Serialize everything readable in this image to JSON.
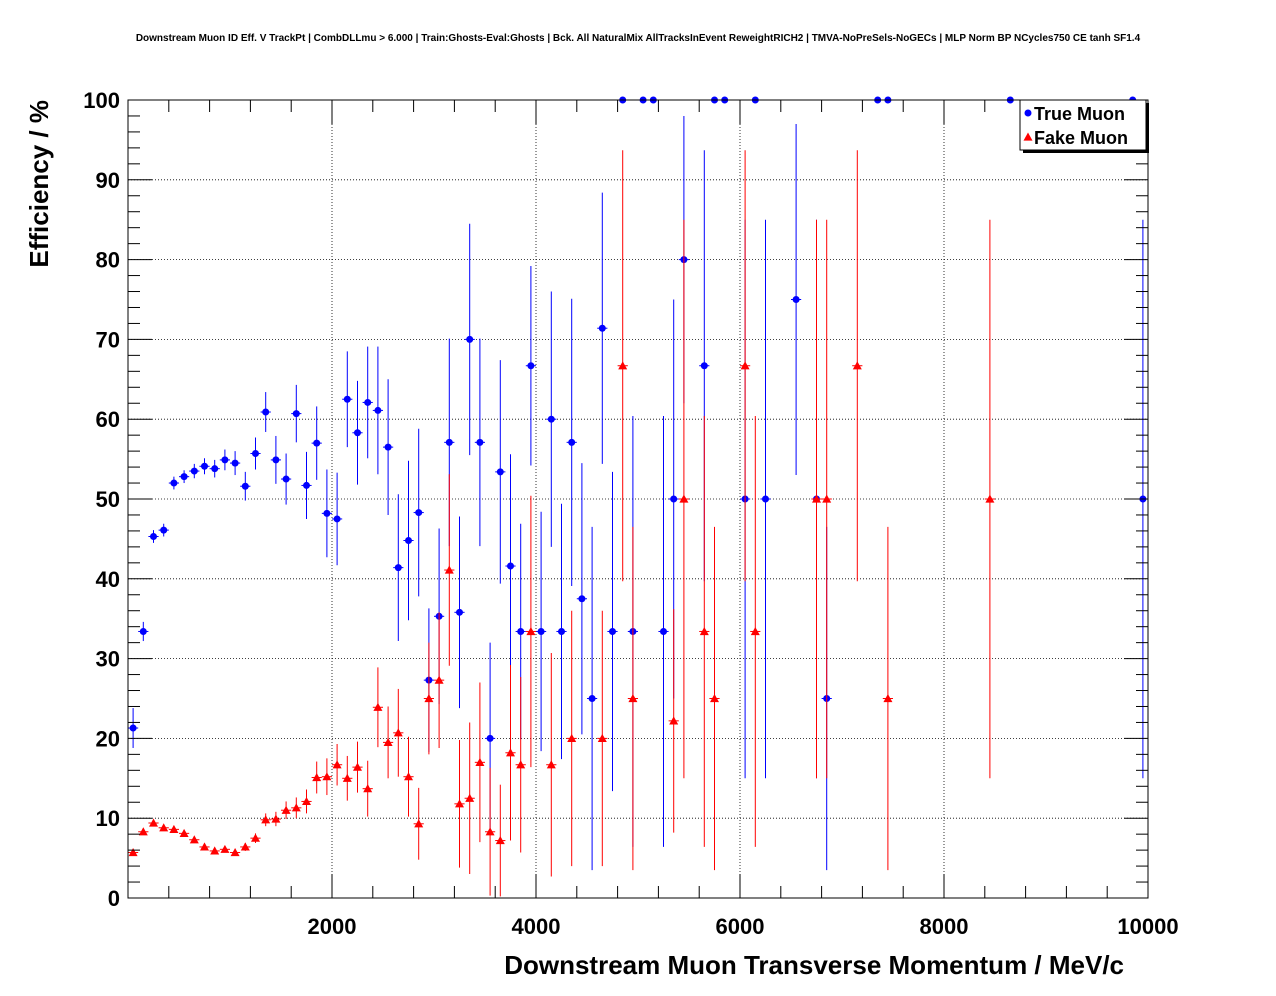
{
  "chart_data": {
    "type": "scatter",
    "title": "Downstream Muon ID Eff. V TrackPt | CombDLLmu > 6.000 | Train:Ghosts-Eval:Ghosts | Bck. All NaturalMix AllTracksInEvent ReweightRICH2 | TMVA-NoPreSels-NoGECs | MLP Norm BP NCycles750 CE tanh SF1.4",
    "xlabel": "Downstream Muon Transverse Momentum / MeV/c",
    "ylabel": "Efficiency / %",
    "xlim": [
      0,
      10000
    ],
    "ylim": [
      0,
      100
    ],
    "x_ticks": [
      "2000",
      "4000",
      "6000",
      "8000",
      "10000"
    ],
    "y_ticks": [
      "0",
      "10",
      "20",
      "30",
      "40",
      "50",
      "60",
      "70",
      "80",
      "90",
      "100"
    ],
    "grid": true,
    "legend_position": "top-right",
    "series": [
      {
        "name": "True Muon",
        "color": "#0000ff",
        "marker": "circle",
        "points": [
          {
            "x": 50,
            "y": 21.3,
            "lo": 2.5,
            "hi": 2.5
          },
          {
            "x": 150,
            "y": 33.4,
            "lo": 1.2,
            "hi": 1.2
          },
          {
            "x": 250,
            "y": 45.3,
            "lo": 0.8,
            "hi": 0.8
          },
          {
            "x": 350,
            "y": 46.1,
            "lo": 0.8,
            "hi": 0.8
          },
          {
            "x": 450,
            "y": 52.0,
            "lo": 0.8,
            "hi": 0.8
          },
          {
            "x": 550,
            "y": 52.8,
            "lo": 0.8,
            "hi": 0.8
          },
          {
            "x": 650,
            "y": 53.5,
            "lo": 0.9,
            "hi": 0.9
          },
          {
            "x": 750,
            "y": 54.1,
            "lo": 1.0,
            "hi": 1.0
          },
          {
            "x": 850,
            "y": 53.8,
            "lo": 1.1,
            "hi": 1.1
          },
          {
            "x": 950,
            "y": 54.9,
            "lo": 1.3,
            "hi": 1.3
          },
          {
            "x": 1050,
            "y": 54.5,
            "lo": 1.5,
            "hi": 1.5
          },
          {
            "x": 1150,
            "y": 51.6,
            "lo": 1.8,
            "hi": 1.8
          },
          {
            "x": 1250,
            "y": 55.7,
            "lo": 2.0,
            "hi": 2.0
          },
          {
            "x": 1350,
            "y": 60.9,
            "lo": 2.5,
            "hi": 2.5
          },
          {
            "x": 1450,
            "y": 54.9,
            "lo": 3.0,
            "hi": 3.0
          },
          {
            "x": 1550,
            "y": 52.5,
            "lo": 3.2,
            "hi": 3.2
          },
          {
            "x": 1650,
            "y": 60.7,
            "lo": 3.6,
            "hi": 3.6
          },
          {
            "x": 1750,
            "y": 51.7,
            "lo": 4.2,
            "hi": 4.2
          },
          {
            "x": 1850,
            "y": 57.0,
            "lo": 4.6,
            "hi": 4.6
          },
          {
            "x": 1950,
            "y": 48.2,
            "lo": 5.5,
            "hi": 5.5
          },
          {
            "x": 2050,
            "y": 47.5,
            "lo": 5.8,
            "hi": 5.8
          },
          {
            "x": 2150,
            "y": 62.5,
            "lo": 6.0,
            "hi": 6.0
          },
          {
            "x": 2250,
            "y": 58.3,
            "lo": 6.5,
            "hi": 6.5
          },
          {
            "x": 2350,
            "y": 62.1,
            "lo": 7.0,
            "hi": 7.0
          },
          {
            "x": 2450,
            "y": 61.1,
            "lo": 8.0,
            "hi": 8.0
          },
          {
            "x": 2550,
            "y": 56.5,
            "lo": 8.5,
            "hi": 8.5
          },
          {
            "x": 2650,
            "y": 41.4,
            "lo": 9.2,
            "hi": 9.2
          },
          {
            "x": 2750,
            "y": 44.8,
            "lo": 10.0,
            "hi": 10.0
          },
          {
            "x": 2850,
            "y": 48.3,
            "lo": 10.5,
            "hi": 10.5
          },
          {
            "x": 2950,
            "y": 27.3,
            "lo": 9.0,
            "hi": 9.0
          },
          {
            "x": 3050,
            "y": 35.3,
            "lo": 11.0,
            "hi": 11.0
          },
          {
            "x": 3150,
            "y": 57.1,
            "lo": 13.0,
            "hi": 13.0
          },
          {
            "x": 3250,
            "y": 35.8,
            "lo": 12.0,
            "hi": 12.0
          },
          {
            "x": 3350,
            "y": 70.0,
            "lo": 14.5,
            "hi": 14.5
          },
          {
            "x": 3450,
            "y": 57.1,
            "lo": 13.0,
            "hi": 13.0
          },
          {
            "x": 3550,
            "y": 20.0,
            "lo": 12.0,
            "hi": 12.0
          },
          {
            "x": 3650,
            "y": 53.4,
            "lo": 14.0,
            "hi": 14.0
          },
          {
            "x": 3750,
            "y": 41.6,
            "lo": 14.0,
            "hi": 14.0
          },
          {
            "x": 3850,
            "y": 33.4,
            "lo": 13.5,
            "hi": 13.5
          },
          {
            "x": 3950,
            "y": 66.7,
            "lo": 12.5,
            "hi": 12.5
          },
          {
            "x": 4050,
            "y": 33.4,
            "lo": 15.0,
            "hi": 15.0
          },
          {
            "x": 4150,
            "y": 60.0,
            "lo": 16.0,
            "hi": 16.0
          },
          {
            "x": 4250,
            "y": 33.4,
            "lo": 16.0,
            "hi": 16.0
          },
          {
            "x": 4350,
            "y": 57.1,
            "lo": 18.0,
            "hi": 18.0
          },
          {
            "x": 4450,
            "y": 37.5,
            "lo": 17.0,
            "hi": 17.0
          },
          {
            "x": 4550,
            "y": 25.0,
            "lo": 21.5,
            "hi": 21.5
          },
          {
            "x": 4650,
            "y": 71.4,
            "lo": 17.0,
            "hi": 17.0
          },
          {
            "x": 4750,
            "y": 33.4,
            "lo": 20.0,
            "hi": 20.0
          },
          {
            "x": 4850,
            "y": 100,
            "lo": 0,
            "hi": 0
          },
          {
            "x": 4950,
            "y": 33.4,
            "lo": 27.0,
            "hi": 27.0
          },
          {
            "x": 5050,
            "y": 100,
            "lo": 0,
            "hi": 0
          },
          {
            "x": 5150,
            "y": 100,
            "lo": 0,
            "hi": 0
          },
          {
            "x": 5250,
            "y": 33.4,
            "lo": 27.0,
            "hi": 27.0
          },
          {
            "x": 5350,
            "y": 50.0,
            "lo": 25.0,
            "hi": 25.0
          },
          {
            "x": 5450,
            "y": 80.0,
            "lo": 18.0,
            "hi": 18.0
          },
          {
            "x": 5650,
            "y": 66.7,
            "lo": 27.0,
            "hi": 27.0
          },
          {
            "x": 5750,
            "y": 100,
            "lo": 0,
            "hi": 0
          },
          {
            "x": 5850,
            "y": 100,
            "lo": 0,
            "hi": 0
          },
          {
            "x": 6050,
            "y": 50.0,
            "lo": 35.0,
            "hi": 35.0
          },
          {
            "x": 6150,
            "y": 100,
            "lo": 0,
            "hi": 0
          },
          {
            "x": 6250,
            "y": 50.0,
            "lo": 35.0,
            "hi": 35.0
          },
          {
            "x": 6550,
            "y": 75.0,
            "lo": 22.0,
            "hi": 22.0
          },
          {
            "x": 6750,
            "y": 50.0,
            "lo": 35.0,
            "hi": 35.0
          },
          {
            "x": 6850,
            "y": 25.0,
            "lo": 21.5,
            "hi": 21.5
          },
          {
            "x": 7350,
            "y": 100,
            "lo": 0,
            "hi": 0
          },
          {
            "x": 7450,
            "y": 100,
            "lo": 0,
            "hi": 0
          },
          {
            "x": 8650,
            "y": 100,
            "lo": 0,
            "hi": 0
          },
          {
            "x": 9850,
            "y": 100,
            "lo": 0,
            "hi": 0
          },
          {
            "x": 9950,
            "y": 50.0,
            "lo": 35.0,
            "hi": 35.0
          }
        ]
      },
      {
        "name": "Fake Muon",
        "color": "#ff0000",
        "marker": "triangle",
        "points": [
          {
            "x": 50,
            "y": 5.7,
            "lo": 0.4,
            "hi": 0.4
          },
          {
            "x": 150,
            "y": 8.3,
            "lo": 0.4,
            "hi": 0.4
          },
          {
            "x": 250,
            "y": 9.4,
            "lo": 0.3,
            "hi": 0.3
          },
          {
            "x": 350,
            "y": 8.8,
            "lo": 0.3,
            "hi": 0.3
          },
          {
            "x": 450,
            "y": 8.6,
            "lo": 0.3,
            "hi": 0.3
          },
          {
            "x": 550,
            "y": 8.1,
            "lo": 0.3,
            "hi": 0.3
          },
          {
            "x": 650,
            "y": 7.3,
            "lo": 0.3,
            "hi": 0.3
          },
          {
            "x": 750,
            "y": 6.4,
            "lo": 0.3,
            "hi": 0.3
          },
          {
            "x": 850,
            "y": 5.9,
            "lo": 0.3,
            "hi": 0.3
          },
          {
            "x": 950,
            "y": 6.1,
            "lo": 0.3,
            "hi": 0.3
          },
          {
            "x": 1050,
            "y": 5.7,
            "lo": 0.4,
            "hi": 0.4
          },
          {
            "x": 1150,
            "y": 6.4,
            "lo": 0.5,
            "hi": 0.5
          },
          {
            "x": 1250,
            "y": 7.5,
            "lo": 0.6,
            "hi": 0.6
          },
          {
            "x": 1350,
            "y": 9.8,
            "lo": 0.8,
            "hi": 0.8
          },
          {
            "x": 1450,
            "y": 9.9,
            "lo": 0.9,
            "hi": 0.9
          },
          {
            "x": 1550,
            "y": 11.0,
            "lo": 1.1,
            "hi": 1.1
          },
          {
            "x": 1650,
            "y": 11.3,
            "lo": 1.3,
            "hi": 1.3
          },
          {
            "x": 1750,
            "y": 12.1,
            "lo": 1.5,
            "hi": 1.5
          },
          {
            "x": 1850,
            "y": 15.1,
            "lo": 2.0,
            "hi": 2.0
          },
          {
            "x": 1950,
            "y": 15.2,
            "lo": 2.3,
            "hi": 2.3
          },
          {
            "x": 2050,
            "y": 16.7,
            "lo": 2.6,
            "hi": 2.6
          },
          {
            "x": 2150,
            "y": 15.0,
            "lo": 2.8,
            "hi": 2.8
          },
          {
            "x": 2250,
            "y": 16.4,
            "lo": 3.2,
            "hi": 3.2
          },
          {
            "x": 2350,
            "y": 13.7,
            "lo": 3.5,
            "hi": 3.5
          },
          {
            "x": 2450,
            "y": 23.9,
            "lo": 5.0,
            "hi": 5.0
          },
          {
            "x": 2550,
            "y": 19.5,
            "lo": 4.5,
            "hi": 4.5
          },
          {
            "x": 2650,
            "y": 20.7,
            "lo": 5.5,
            "hi": 5.5
          },
          {
            "x": 2750,
            "y": 15.2,
            "lo": 5.0,
            "hi": 5.0
          },
          {
            "x": 2850,
            "y": 9.3,
            "lo": 4.5,
            "hi": 4.5
          },
          {
            "x": 2950,
            "y": 25.0,
            "lo": 7.0,
            "hi": 7.0
          },
          {
            "x": 3050,
            "y": 27.3,
            "lo": 8.5,
            "hi": 8.5
          },
          {
            "x": 3150,
            "y": 41.1,
            "lo": 12.0,
            "hi": 12.0
          },
          {
            "x": 3250,
            "y": 11.8,
            "lo": 8.0,
            "hi": 8.0
          },
          {
            "x": 3350,
            "y": 12.5,
            "lo": 9.5,
            "hi": 9.5
          },
          {
            "x": 3450,
            "y": 17.0,
            "lo": 10.0,
            "hi": 10.0
          },
          {
            "x": 3550,
            "y": 8.3,
            "lo": 8.0,
            "hi": 8.0
          },
          {
            "x": 3650,
            "y": 7.2,
            "lo": 7.0,
            "hi": 7.0
          },
          {
            "x": 3750,
            "y": 18.2,
            "lo": 11.0,
            "hi": 11.0
          },
          {
            "x": 3850,
            "y": 16.7,
            "lo": 11.0,
            "hi": 11.0
          },
          {
            "x": 3950,
            "y": 33.4,
            "lo": 17.0,
            "hi": 17.0
          },
          {
            "x": 4150,
            "y": 16.7,
            "lo": 14.0,
            "hi": 14.0
          },
          {
            "x": 4350,
            "y": 20.0,
            "lo": 16.0,
            "hi": 16.0
          },
          {
            "x": 4650,
            "y": 20.0,
            "lo": 16.0,
            "hi": 16.0
          },
          {
            "x": 4850,
            "y": 66.7,
            "lo": 27.0,
            "hi": 27.0
          },
          {
            "x": 4950,
            "y": 25.0,
            "lo": 21.5,
            "hi": 21.5
          },
          {
            "x": 5350,
            "y": 22.2,
            "lo": 14.0,
            "hi": 14.0
          },
          {
            "x": 5450,
            "y": 50.0,
            "lo": 35.0,
            "hi": 35.0
          },
          {
            "x": 5650,
            "y": 33.4,
            "lo": 27.0,
            "hi": 27.0
          },
          {
            "x": 5750,
            "y": 25.0,
            "lo": 21.5,
            "hi": 21.5
          },
          {
            "x": 6050,
            "y": 66.7,
            "lo": 27.0,
            "hi": 27.0
          },
          {
            "x": 6150,
            "y": 33.4,
            "lo": 27.0,
            "hi": 27.0
          },
          {
            "x": 6750,
            "y": 50.0,
            "lo": 35.0,
            "hi": 35.0
          },
          {
            "x": 6850,
            "y": 50.0,
            "lo": 35.0,
            "hi": 35.0
          },
          {
            "x": 7150,
            "y": 66.7,
            "lo": 27.0,
            "hi": 27.0
          },
          {
            "x": 7450,
            "y": 25.0,
            "lo": 21.5,
            "hi": 21.5
          },
          {
            "x": 8450,
            "y": 50.0,
            "lo": 35.0,
            "hi": 35.0
          }
        ]
      }
    ]
  }
}
